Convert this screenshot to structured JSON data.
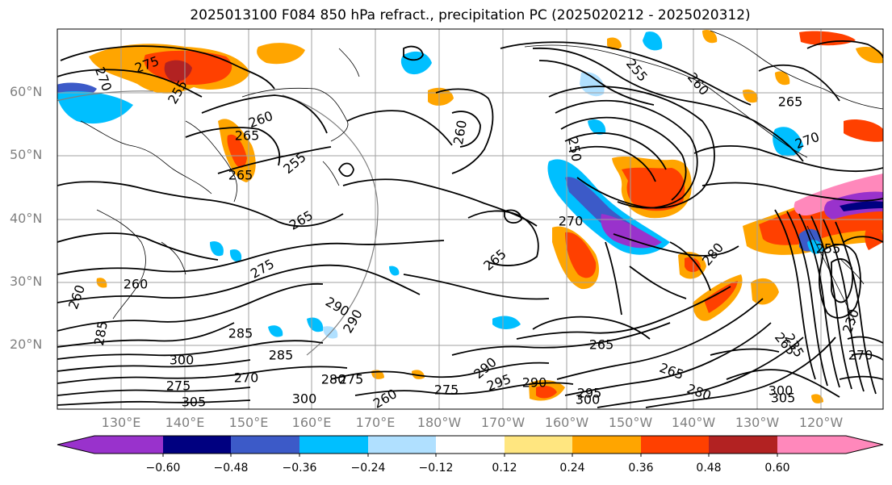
{
  "title": "2025013100 F084 850 hPa refract., precipitation PC (2025020212 - 2025020312)",
  "lat_labels": [
    "60°N",
    "50°N",
    "40°N",
    "30°N",
    "20°N"
  ],
  "lon_labels": [
    "130°E",
    "140°E",
    "150°E",
    "160°E",
    "170°E",
    "180°W",
    "170°W",
    "160°W",
    "150°W",
    "140°W",
    "130°W",
    "120°W"
  ],
  "colorbar": {
    "tick_labels": [
      "−0.60",
      "−0.48",
      "−0.36",
      "−0.24",
      "−0.12",
      "0.12",
      "0.24",
      "0.36",
      "0.48",
      "0.60"
    ],
    "colors": [
      "#9932cc",
      "#000080",
      "#3c5ac8",
      "#00bfff",
      "#b0e0ff",
      "#ffffff",
      "#ffe680",
      "#ffa500",
      "#ff4000",
      "#b22222",
      "#ff88bb"
    ]
  },
  "contour_labels": [
    "275",
    "270",
    "265",
    "255",
    "260",
    "255",
    "260",
    "265",
    "260",
    "250",
    "265",
    "270",
    "255",
    "265",
    "255",
    "265",
    "265",
    "270",
    "280",
    "260",
    "260",
    "275",
    "290",
    "285",
    "300",
    "285",
    "290",
    "295",
    "275",
    "270",
    "305",
    "300",
    "280",
    "275",
    "275",
    "260",
    "290",
    "295",
    "290",
    "300",
    "265",
    "285",
    "265",
    "280",
    "300",
    "305",
    "235",
    "230",
    "270"
  ]
}
